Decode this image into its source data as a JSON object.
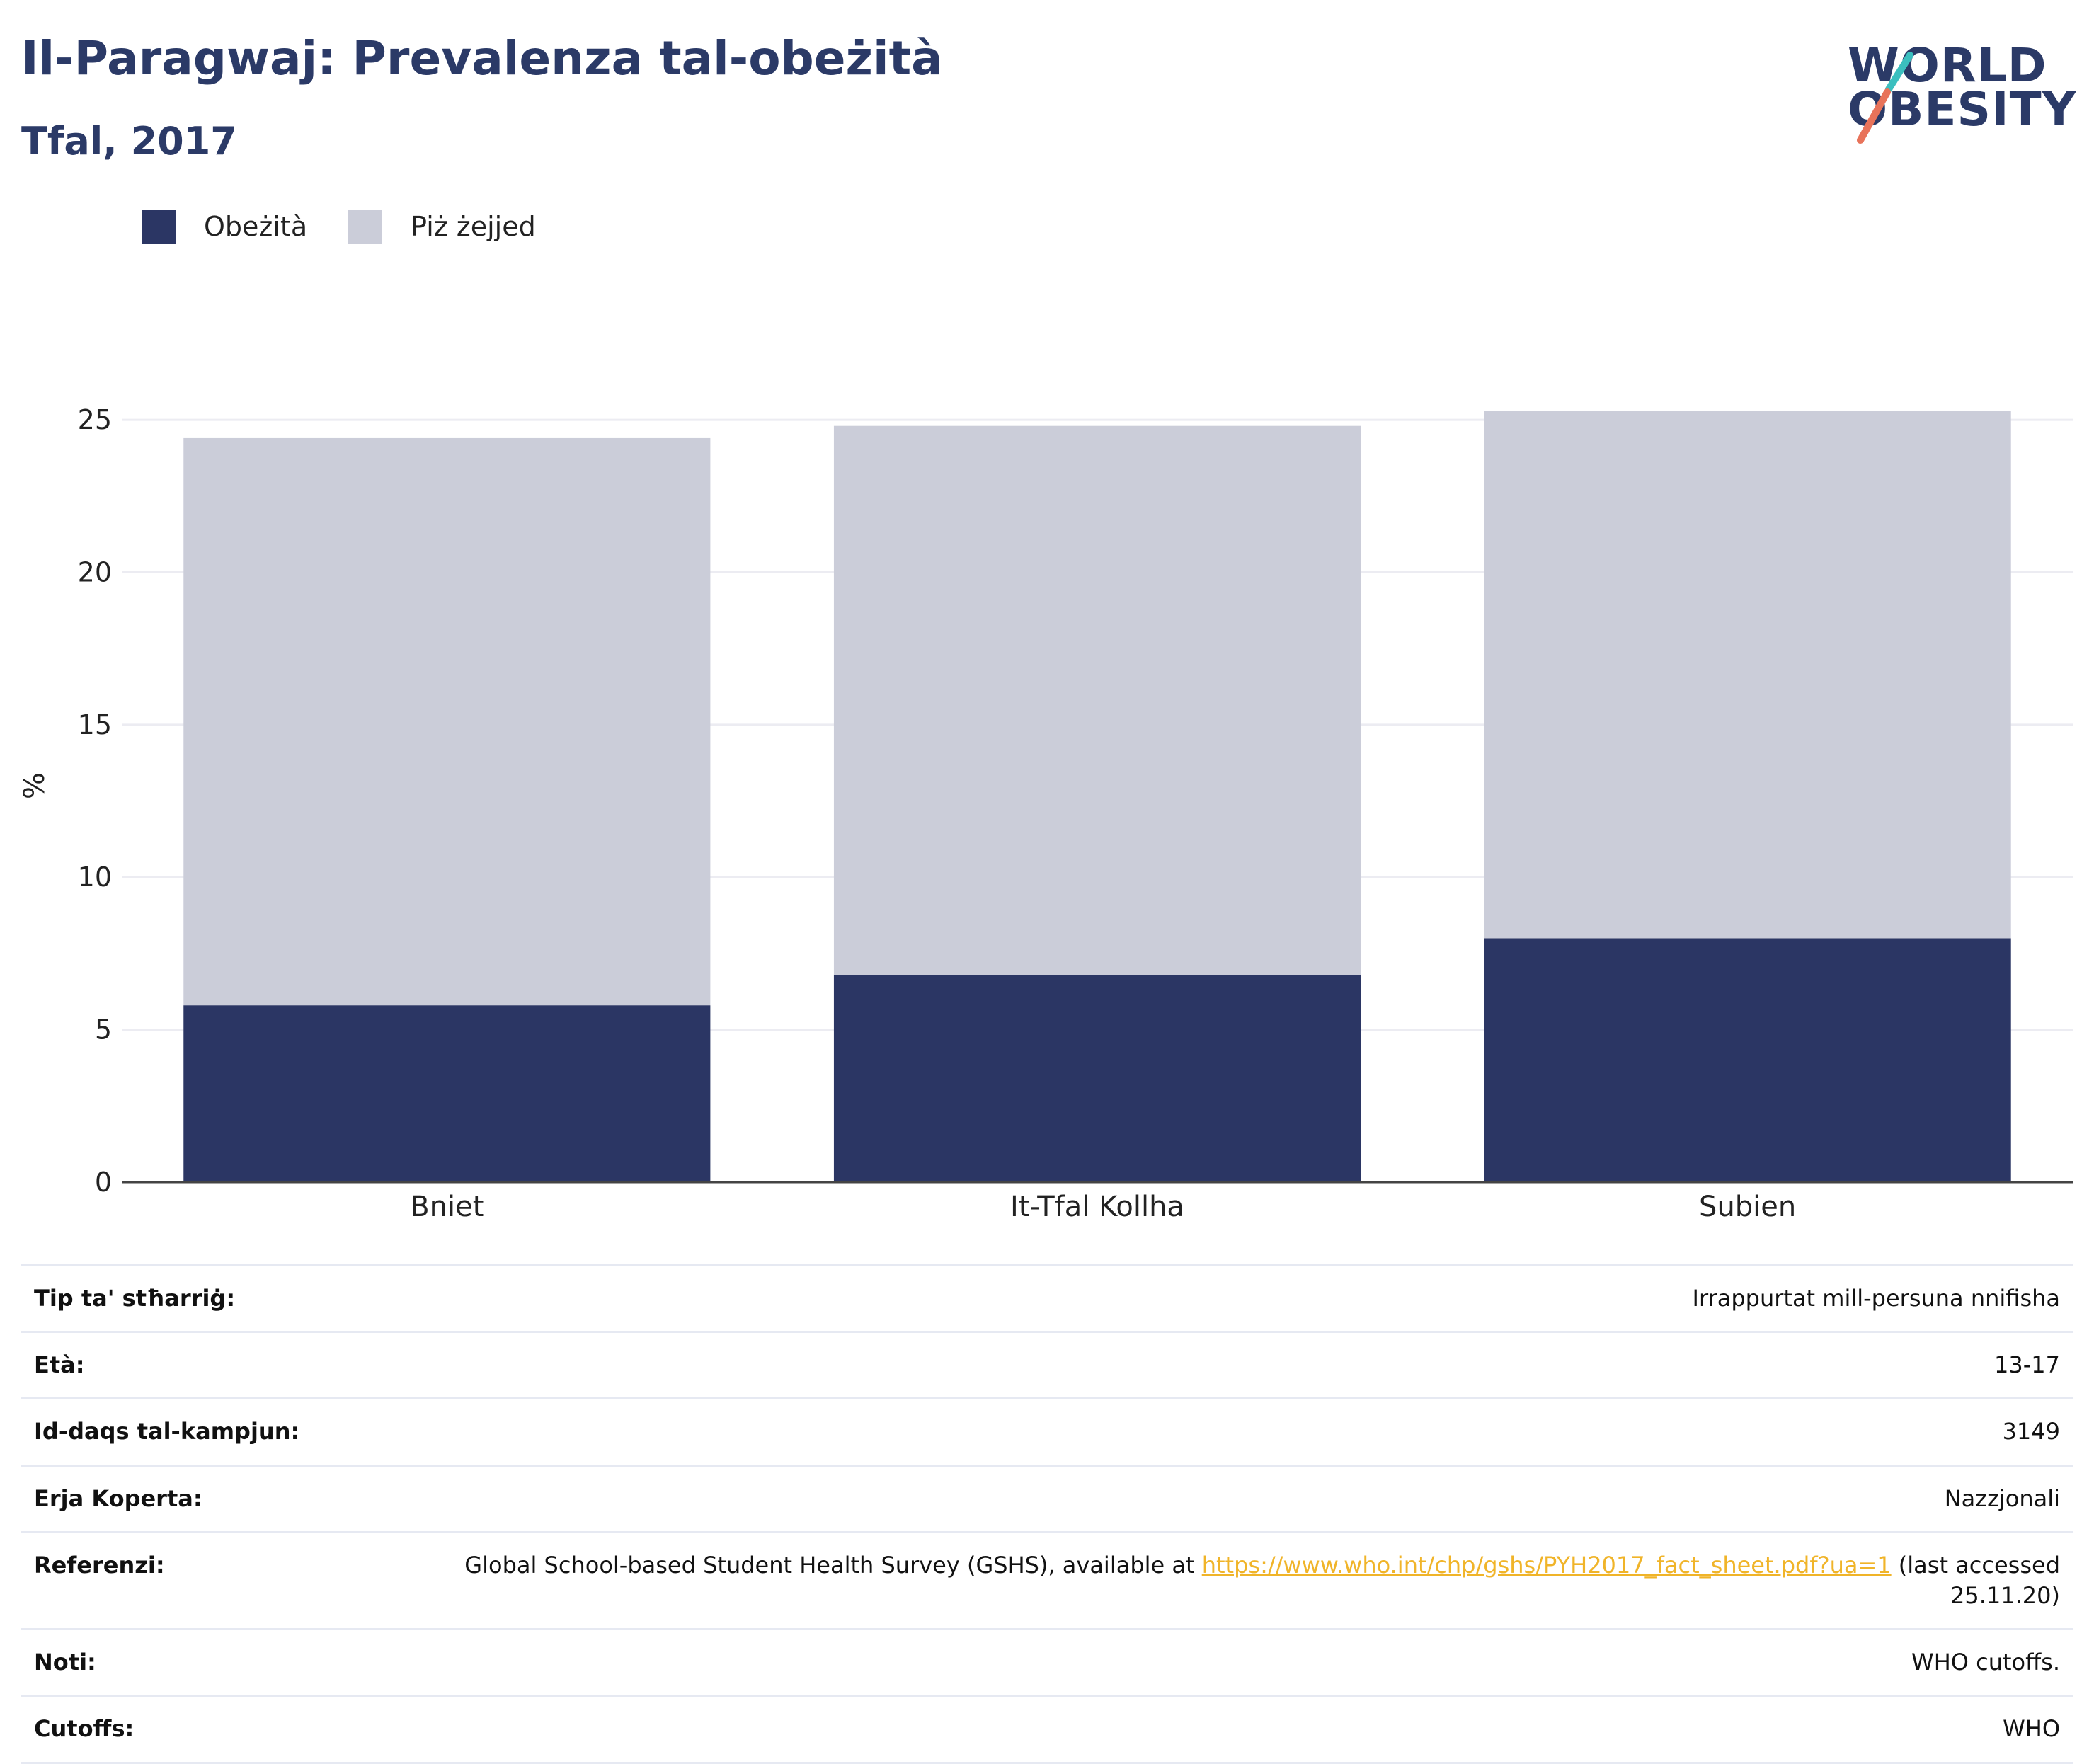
{
  "header": {
    "title": "Il-Paragwaj: Prevalenza tal-obeżità",
    "subtitle": "Tfal, 2017",
    "logo_line1": "WORLD",
    "logo_line2": "OBESITY"
  },
  "colors": {
    "obesity": "#2b3664",
    "overweight": "#cbcdd9",
    "title": "#2b3a67",
    "logo_teal": "#3bbfbf",
    "logo_coral": "#e8735a",
    "link": "#f0b429"
  },
  "chart_data": {
    "type": "bar",
    "stacked": true,
    "title": "Il-Paragwaj: Prevalenza tal-obeżità",
    "subtitle": "Tfal, 2017",
    "xlabel": "",
    "ylabel": "%",
    "ylim": [
      0,
      26
    ],
    "yticks": [
      0,
      5,
      10,
      15,
      20,
      25
    ],
    "grid": true,
    "legend_position": "top-left",
    "categories": [
      "Bniet",
      "It-Tfal Kollha",
      "Subien"
    ],
    "series": [
      {
        "name": "Obeżità",
        "color": "#2b3664",
        "values": [
          5.8,
          6.8,
          8.0
        ]
      },
      {
        "name": "Piż żejjed",
        "color": "#cbcdd9",
        "values": [
          18.6,
          18.0,
          17.3
        ]
      }
    ]
  },
  "info": {
    "rows": [
      {
        "key": "Tip ta' stħarriġ:",
        "value": "Irrappurtat mill-persuna nnifisha"
      },
      {
        "key": "Età:",
        "value": "13-17"
      },
      {
        "key": "Id-daqs tal-kampjun:",
        "value": "3149"
      },
      {
        "key": "Erja Koperta:",
        "value": "Nazzjonali"
      },
      {
        "key": "Referenzi:",
        "value_before": "Global School-based Student Health Survey (GSHS), available at ",
        "link": "https://www.who.int/chp/gshs/PYH2017_fact_sheet.pdf?ua=1",
        "value_after": " (last accessed 25.11.20)"
      },
      {
        "key": "Noti:",
        "value": "WHO cutoffs."
      },
      {
        "key": "Cutoffs:",
        "value": "WHO"
      }
    ]
  }
}
